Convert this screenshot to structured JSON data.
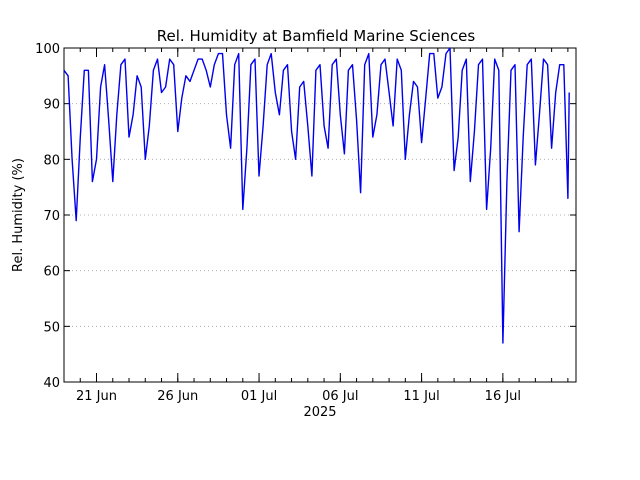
{
  "chart_data": {
    "type": "line",
    "title": "Rel. Humidity at Bamfield Marine Sciences",
    "ylabel": "Rel. Humidity (%)",
    "xlabel": "2025",
    "ylim": [
      40,
      100
    ],
    "yticks": [
      40,
      50,
      60,
      70,
      80,
      90,
      100
    ],
    "x_range_days": [
      "2025-06-19",
      "2025-07-20"
    ],
    "xticks": [
      {
        "date": "2025-06-21",
        "label": "21 Jun"
      },
      {
        "date": "2025-06-26",
        "label": "26 Jun"
      },
      {
        "date": "2025-07-01",
        "label": "01 Jul"
      },
      {
        "date": "2025-07-06",
        "label": "06 Jul"
      },
      {
        "date": "2025-07-11",
        "label": "11 Jul"
      },
      {
        "date": "2025-07-16",
        "label": "16 Jul"
      }
    ],
    "grid": true,
    "series": [
      {
        "color": "#0000ee",
        "points": [
          [
            "2025-06-19 00:00",
            96
          ],
          [
            "2025-06-19 06:00",
            95
          ],
          [
            "2025-06-19 12:00",
            80
          ],
          [
            "2025-06-19 18:00",
            69
          ],
          [
            "2025-06-20 00:00",
            84
          ],
          [
            "2025-06-20 06:00",
            96
          ],
          [
            "2025-06-20 12:00",
            96
          ],
          [
            "2025-06-20 18:00",
            76
          ],
          [
            "2025-06-21 00:00",
            80
          ],
          [
            "2025-06-21 06:00",
            93
          ],
          [
            "2025-06-21 12:00",
            97
          ],
          [
            "2025-06-21 18:00",
            87
          ],
          [
            "2025-06-22 00:00",
            76
          ],
          [
            "2025-06-22 06:00",
            88
          ],
          [
            "2025-06-22 12:00",
            97
          ],
          [
            "2025-06-22 18:00",
            98
          ],
          [
            "2025-06-23 00:00",
            84
          ],
          [
            "2025-06-23 06:00",
            88
          ],
          [
            "2025-06-23 12:00",
            95
          ],
          [
            "2025-06-23 18:00",
            93
          ],
          [
            "2025-06-24 00:00",
            80
          ],
          [
            "2025-06-24 06:00",
            86
          ],
          [
            "2025-06-24 12:00",
            96
          ],
          [
            "2025-06-24 18:00",
            98
          ],
          [
            "2025-06-25 00:00",
            92
          ],
          [
            "2025-06-25 06:00",
            93
          ],
          [
            "2025-06-25 12:00",
            98
          ],
          [
            "2025-06-25 18:00",
            97
          ],
          [
            "2025-06-26 00:00",
            85
          ],
          [
            "2025-06-26 06:00",
            91
          ],
          [
            "2025-06-26 12:00",
            95
          ],
          [
            "2025-06-26 18:00",
            94
          ],
          [
            "2025-06-27 00:00",
            96
          ],
          [
            "2025-06-27 06:00",
            98
          ],
          [
            "2025-06-27 12:00",
            98
          ],
          [
            "2025-06-27 18:00",
            96
          ],
          [
            "2025-06-28 00:00",
            93
          ],
          [
            "2025-06-28 06:00",
            97
          ],
          [
            "2025-06-28 12:00",
            99
          ],
          [
            "2025-06-28 18:00",
            99
          ],
          [
            "2025-06-29 00:00",
            88
          ],
          [
            "2025-06-29 06:00",
            82
          ],
          [
            "2025-06-29 12:00",
            97
          ],
          [
            "2025-06-29 18:00",
            99
          ],
          [
            "2025-06-30 00:00",
            71
          ],
          [
            "2025-06-30 06:00",
            82
          ],
          [
            "2025-06-30 12:00",
            97
          ],
          [
            "2025-06-30 18:00",
            98
          ],
          [
            "2025-07-01 00:00",
            77
          ],
          [
            "2025-07-01 06:00",
            86
          ],
          [
            "2025-07-01 12:00",
            97
          ],
          [
            "2025-07-01 18:00",
            99
          ],
          [
            "2025-07-02 00:00",
            92
          ],
          [
            "2025-07-02 06:00",
            88
          ],
          [
            "2025-07-02 12:00",
            96
          ],
          [
            "2025-07-02 18:00",
            97
          ],
          [
            "2025-07-03 00:00",
            85
          ],
          [
            "2025-07-03 06:00",
            80
          ],
          [
            "2025-07-03 12:00",
            93
          ],
          [
            "2025-07-03 18:00",
            94
          ],
          [
            "2025-07-04 00:00",
            86
          ],
          [
            "2025-07-04 06:00",
            77
          ],
          [
            "2025-07-04 12:00",
            96
          ],
          [
            "2025-07-04 18:00",
            97
          ],
          [
            "2025-07-05 00:00",
            86
          ],
          [
            "2025-07-05 06:00",
            82
          ],
          [
            "2025-07-05 12:00",
            97
          ],
          [
            "2025-07-05 18:00",
            98
          ],
          [
            "2025-07-06 00:00",
            88
          ],
          [
            "2025-07-06 06:00",
            81
          ],
          [
            "2025-07-06 12:00",
            96
          ],
          [
            "2025-07-06 18:00",
            97
          ],
          [
            "2025-07-07 00:00",
            87
          ],
          [
            "2025-07-07 06:00",
            74
          ],
          [
            "2025-07-07 12:00",
            97
          ],
          [
            "2025-07-07 18:00",
            99
          ],
          [
            "2025-07-08 00:00",
            84
          ],
          [
            "2025-07-08 06:00",
            88
          ],
          [
            "2025-07-08 12:00",
            97
          ],
          [
            "2025-07-08 18:00",
            98
          ],
          [
            "2025-07-09 00:00",
            92
          ],
          [
            "2025-07-09 06:00",
            86
          ],
          [
            "2025-07-09 12:00",
            98
          ],
          [
            "2025-07-09 18:00",
            96
          ],
          [
            "2025-07-10 00:00",
            80
          ],
          [
            "2025-07-10 06:00",
            88
          ],
          [
            "2025-07-10 12:00",
            94
          ],
          [
            "2025-07-10 18:00",
            93
          ],
          [
            "2025-07-11 00:00",
            83
          ],
          [
            "2025-07-11 06:00",
            91
          ],
          [
            "2025-07-11 12:00",
            99
          ],
          [
            "2025-07-11 18:00",
            99
          ],
          [
            "2025-07-12 00:00",
            91
          ],
          [
            "2025-07-12 06:00",
            93
          ],
          [
            "2025-07-12 12:00",
            99
          ],
          [
            "2025-07-12 18:00",
            100
          ],
          [
            "2025-07-13 00:00",
            78
          ],
          [
            "2025-07-13 06:00",
            84
          ],
          [
            "2025-07-13 12:00",
            96
          ],
          [
            "2025-07-13 18:00",
            98
          ],
          [
            "2025-07-14 00:00",
            76
          ],
          [
            "2025-07-14 06:00",
            85
          ],
          [
            "2025-07-14 12:00",
            97
          ],
          [
            "2025-07-14 18:00",
            98
          ],
          [
            "2025-07-15 00:00",
            71
          ],
          [
            "2025-07-15 06:00",
            82
          ],
          [
            "2025-07-15 12:00",
            98
          ],
          [
            "2025-07-15 18:00",
            96
          ],
          [
            "2025-07-16 00:00",
            47
          ],
          [
            "2025-07-16 06:00",
            76
          ],
          [
            "2025-07-16 12:00",
            96
          ],
          [
            "2025-07-16 18:00",
            97
          ],
          [
            "2025-07-17 00:00",
            67
          ],
          [
            "2025-07-17 06:00",
            84
          ],
          [
            "2025-07-17 12:00",
            97
          ],
          [
            "2025-07-17 18:00",
            98
          ],
          [
            "2025-07-18 00:00",
            79
          ],
          [
            "2025-07-18 06:00",
            88
          ],
          [
            "2025-07-18 12:00",
            98
          ],
          [
            "2025-07-18 18:00",
            97
          ],
          [
            "2025-07-19 00:00",
            82
          ],
          [
            "2025-07-19 06:00",
            92
          ],
          [
            "2025-07-19 12:00",
            97
          ],
          [
            "2025-07-19 18:00",
            97
          ],
          [
            "2025-07-20 00:00",
            73
          ],
          [
            "2025-07-20 02:00",
            92
          ]
        ]
      }
    ]
  }
}
